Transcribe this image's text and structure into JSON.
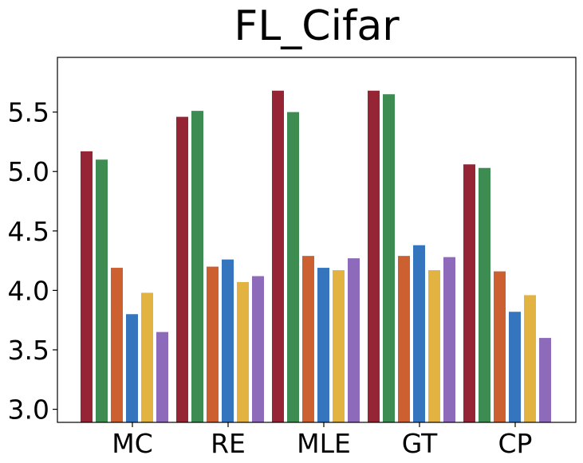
{
  "chart_data": {
    "type": "bar",
    "title": "FL_Cifar",
    "xlabel": "",
    "ylabel": "",
    "categories": [
      "MC",
      "RE",
      "MLE",
      "GT",
      "CP"
    ],
    "ylim": [
      2.89,
      5.96
    ],
    "yticks": [
      3.0,
      3.5,
      4.0,
      4.5,
      5.0,
      5.5
    ],
    "ytick_labels": [
      "3.0",
      "3.5",
      "4.0",
      "4.5",
      "5.0",
      "5.5"
    ],
    "grid": false,
    "legend": "none",
    "series": [
      {
        "color": "#952434",
        "values": [
          5.17,
          5.46,
          5.68,
          5.68,
          5.06
        ]
      },
      {
        "color": "#3d8c52",
        "values": [
          5.1,
          5.51,
          5.5,
          5.65,
          5.03
        ]
      },
      {
        "color": "#cc6031",
        "values": [
          4.19,
          4.2,
          4.29,
          4.29,
          4.16
        ]
      },
      {
        "color": "#3475bd",
        "values": [
          3.8,
          4.26,
          4.19,
          4.38,
          3.82
        ]
      },
      {
        "color": "#e3b341",
        "values": [
          3.98,
          4.07,
          4.17,
          4.17,
          3.96
        ]
      },
      {
        "color": "#8e6bba",
        "values": [
          3.65,
          4.12,
          4.27,
          4.28,
          3.6
        ]
      }
    ]
  }
}
